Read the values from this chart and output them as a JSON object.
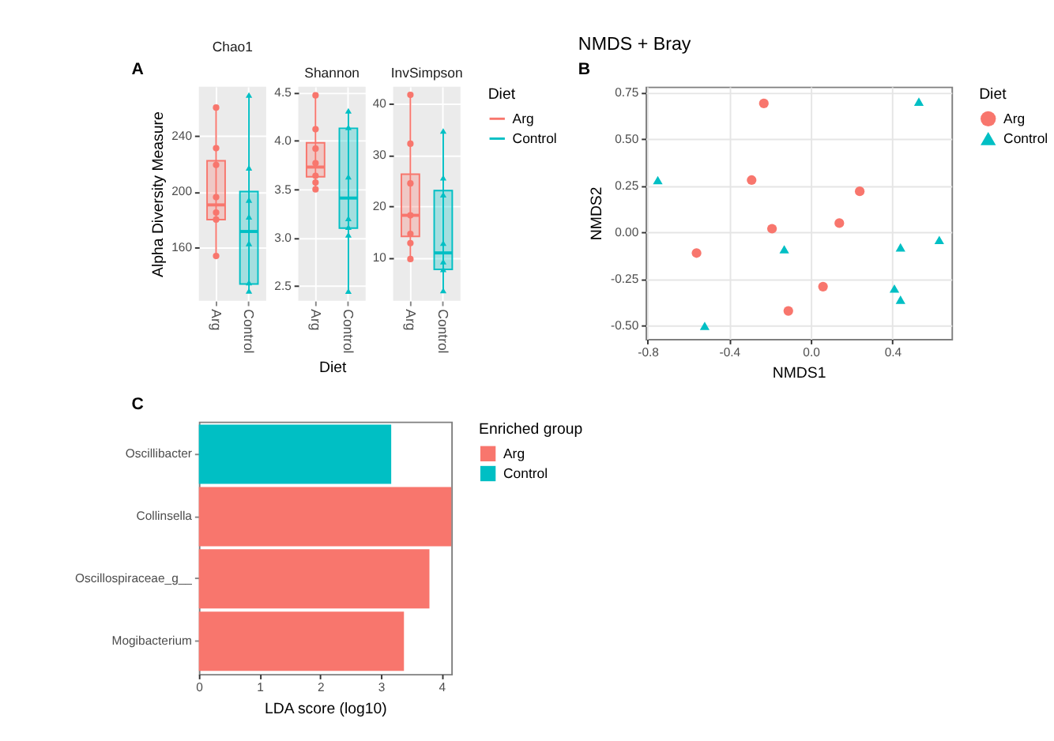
{
  "chart_data": [
    {
      "type": "box",
      "title": "Chao1",
      "ylabel": "Alpha Diversity Measure",
      "annotations": [
        "A"
      ],
      "categories": [
        "Arg",
        "Control"
      ],
      "ylim": [
        122,
        275
      ],
      "yticks": [
        160,
        200,
        240
      ],
      "grid": true,
      "series": [
        {
          "color": "#f8766d",
          "boxes": [
            {
              "low": 154,
              "q1": 180,
              "median": 190.5,
              "q3": 222,
              "high": 260
            },
            null
          ]
        },
        {
          "color": "#00bfc4",
          "boxes": [
            null,
            {
              "low": 129,
              "q1": 134,
              "median": 171.5,
              "q3": 200,
              "high": 269
            }
          ]
        },
        {
          "type": "scatter",
          "color": "#f8766d",
          "marker": "circle",
          "x": [
            "Arg",
            "Arg",
            "Arg",
            "Arg",
            "Arg",
            "Arg",
            "Arg"
          ],
          "values": [
            260,
            231,
            219,
            196,
            185,
            180,
            154
          ]
        },
        {
          "type": "scatter",
          "color": "#00bfc4",
          "marker": "triangle",
          "x": [
            "Control",
            "Control",
            "Control",
            "Control",
            "Control",
            "Control",
            "Control"
          ],
          "values": [
            269,
            217,
            194,
            182,
            163,
            135,
            129
          ]
        }
      ]
    },
    {
      "type": "box",
      "title": "Shannon",
      "xlabel": "Diet",
      "categories": [
        "Arg",
        "Control"
      ],
      "ylim": [
        2.35,
        4.56
      ],
      "yticks": [
        2.5,
        {
          "value": 3.0,
          "label": "3.0"
        },
        3.5,
        {
          "value": 4.0,
          "label": "4.0"
        },
        4.5
      ],
      "grid": true,
      "series": [
        {
          "color": "#f8766d",
          "boxes": [
            {
              "low": 3.5,
              "q1": 3.63,
              "median": 3.73,
              "q3": 3.98,
              "high": 4.47
            },
            null
          ]
        },
        {
          "color": "#00bfc4",
          "boxes": [
            null,
            {
              "low": 2.45,
              "q1": 3.1,
              "median": 3.41,
              "q3": 4.13,
              "high": 4.31
            }
          ]
        },
        {
          "type": "scatter",
          "color": "#f8766d",
          "marker": "circle",
          "x": [
            "Arg",
            "Arg",
            "Arg",
            "Arg",
            "Arg",
            "Arg",
            "Arg"
          ],
          "values": [
            4.47,
            4.12,
            3.92,
            3.77,
            3.64,
            3.57,
            3.5
          ]
        },
        {
          "type": "scatter",
          "color": "#00bfc4",
          "marker": "triangle",
          "x": [
            "Control",
            "Control",
            "Control",
            "Control",
            "Control",
            "Control",
            "Control"
          ],
          "values": [
            4.31,
            4.14,
            3.63,
            3.2,
            3.11,
            3.03,
            2.45
          ]
        }
      ]
    },
    {
      "type": "box",
      "title": "InvSimpson",
      "categories": [
        "Arg",
        "Control"
      ],
      "ylim": [
        1.7,
        43.3
      ],
      "yticks": [
        10,
        20,
        30,
        40
      ],
      "grid": true,
      "legend": "right",
      "legend_title": "Diet",
      "series": [
        {
          "name": "Arg",
          "color": "#f8766d",
          "boxes": [
            {
              "low": 9.8,
              "q1": 14.2,
              "median": 18.3,
              "q3": 26.3,
              "high": 41.7
            },
            null
          ]
        },
        {
          "name": "Control",
          "color": "#00bfc4",
          "boxes": [
            null,
            {
              "low": 3.7,
              "q1": 7.8,
              "median": 11,
              "q3": 23.1,
              "high": 34.7
            }
          ]
        },
        {
          "type": "scatter",
          "color": "#f8766d",
          "marker": "circle",
          "x": [
            "Arg",
            "Arg",
            "Arg",
            "Arg",
            "Arg",
            "Arg",
            "Arg"
          ],
          "values": [
            41.7,
            32.2,
            24.5,
            18.3,
            14.7,
            12.9,
            9.8
          ]
        },
        {
          "type": "scatter",
          "color": "#00bfc4",
          "marker": "triangle",
          "x": [
            "Control",
            "Control",
            "Control",
            "Control",
            "Control",
            "Control",
            "Control"
          ],
          "values": [
            34.7,
            25.6,
            22.3,
            12.9,
            9.3,
            7.8,
            3.7
          ]
        }
      ]
    },
    {
      "type": "scatter",
      "title": "NMDS + Bray",
      "annotations": [
        "B"
      ],
      "xlabel": "NMDS1",
      "ylabel": "NMDS2",
      "xlim": [
        -0.81,
        0.69
      ],
      "ylim": [
        -0.57,
        0.78
      ],
      "xticks": [
        -0.8,
        -0.4,
        {
          "value": 0,
          "label": "0.0"
        },
        0.4
      ],
      "yticks": [
        {
          "value": -0.5,
          "label": "-0.50"
        },
        -0.25,
        {
          "value": 0,
          "label": "0.00"
        },
        0.25,
        {
          "value": 0.5,
          "label": "0.50"
        },
        0.75
      ],
      "grid": true,
      "legend": "right",
      "legend_title": "Diet",
      "series": [
        {
          "name": "Arg",
          "color": "#f8766d",
          "marker": "circle",
          "x": [
            -0.23,
            -0.29,
            0.24,
            -0.19,
            0.14,
            -0.56,
            0.06,
            -0.11
          ],
          "values": [
            0.69,
            0.28,
            0.22,
            0.02,
            0.05,
            -0.11,
            -0.29,
            -0.42
          ]
        },
        {
          "name": "Control",
          "color": "#00bfc4",
          "marker": "triangle",
          "x": [
            0.53,
            -0.75,
            0.63,
            0.44,
            -0.13,
            0.41,
            0.44,
            -0.52
          ],
          "values": [
            0.7,
            0.28,
            -0.04,
            -0.08,
            -0.09,
            -0.3,
            -0.36,
            -0.5
          ]
        }
      ]
    },
    {
      "type": "bar",
      "orientation": "horizontal",
      "annotations": [
        "C"
      ],
      "xlabel": "LDA score (log10)",
      "categories": [
        "Oscillibacter",
        "Collinsella",
        "Oscillospiraceae_g__",
        "Mogibacterium"
      ],
      "xlim": [
        0,
        4.16
      ],
      "xticks": [
        0,
        1,
        2,
        3,
        4
      ],
      "legend": "right",
      "legend_title": "Enriched group",
      "series": [
        {
          "name": "Arg",
          "color": "#f8766d",
          "values": [
            null,
            4.16,
            3.8,
            3.38
          ]
        },
        {
          "name": "Control",
          "color": "#00bfc4",
          "values": [
            3.17,
            null,
            null,
            null
          ]
        }
      ]
    }
  ]
}
